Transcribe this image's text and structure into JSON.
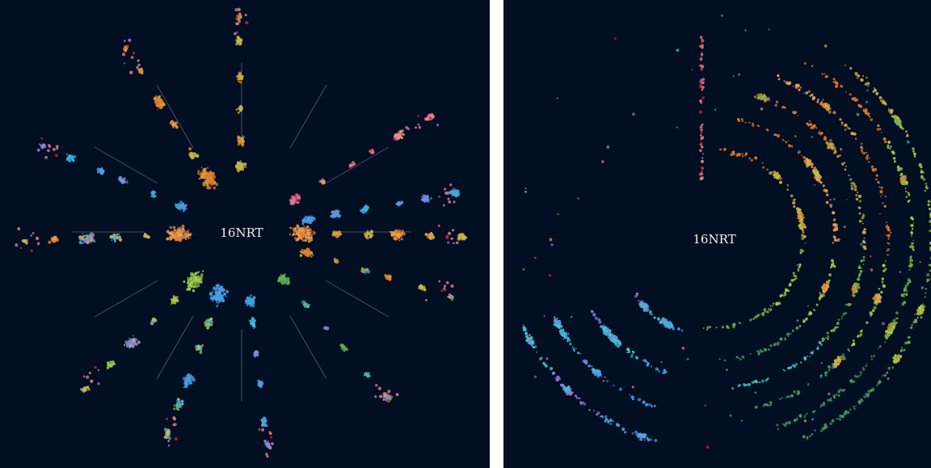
{
  "panels": [
    {
      "id": "left",
      "center_label": "16NRT"
    },
    {
      "id": "right",
      "center_label": "16NRT"
    }
  ],
  "colors": {
    "background": "#020e22",
    "separator": "#ffffff",
    "guide_lines": "#5a6272",
    "label": "#f2f2f2",
    "palette": [
      "#f08a8a",
      "#e8a05a",
      "#e6792a",
      "#c9b14a",
      "#a8c94a",
      "#6ab04a",
      "#3f9a6a",
      "#3cc9c9",
      "#3aa6e6",
      "#6f86e0",
      "#9a7ad6",
      "#c37ac9",
      "#e07a9a",
      "#c02a3a"
    ]
  }
}
